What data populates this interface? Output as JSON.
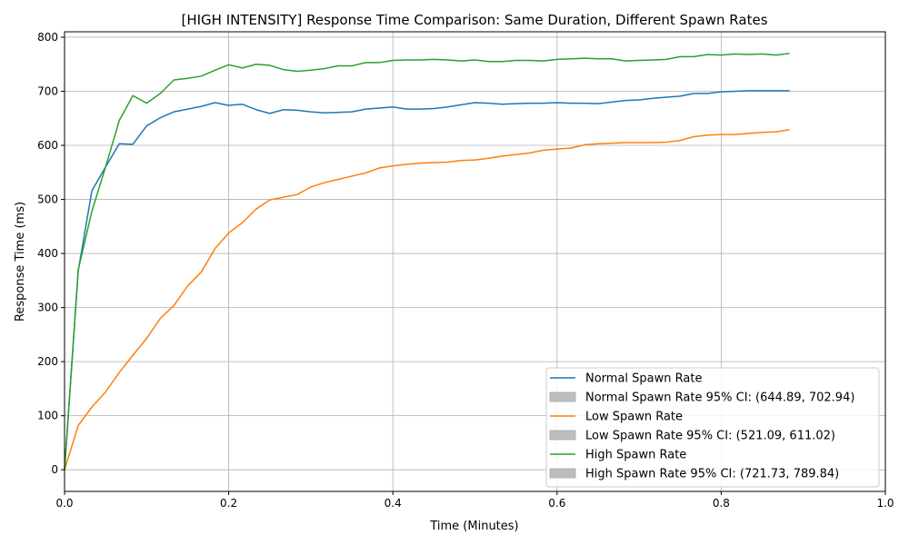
{
  "chart_data": {
    "type": "line",
    "title": "[HIGH INTENSITY] Response Time Comparison: Same Duration, Different Spawn Rates",
    "xlabel": "Time (Minutes)",
    "ylabel": "Response Time (ms)",
    "xlim": [
      0,
      1.0
    ],
    "ylim": [
      -40,
      810
    ],
    "xticks": [
      0.0,
      0.2,
      0.4,
      0.6,
      0.8,
      1.0
    ],
    "xtick_labels": [
      "0.0",
      "0.2",
      "0.4",
      "0.6",
      "0.8",
      "1.0"
    ],
    "yticks": [
      0,
      100,
      200,
      300,
      400,
      500,
      600,
      700,
      800
    ],
    "ytick_labels": [
      "0",
      "100",
      "200",
      "300",
      "400",
      "500",
      "600",
      "700",
      "800"
    ],
    "grid": true,
    "legend_position": "lower-right",
    "x": [
      0.0,
      0.0167,
      0.0333,
      0.05,
      0.0667,
      0.0833,
      0.1,
      0.1167,
      0.1333,
      0.15,
      0.1667,
      0.1833,
      0.2,
      0.2167,
      0.2333,
      0.25,
      0.2667,
      0.2833,
      0.3,
      0.3167,
      0.3333,
      0.35,
      0.3667,
      0.3833,
      0.4,
      0.4167,
      0.4333,
      0.45,
      0.4667,
      0.4833,
      0.5,
      0.5167,
      0.5333,
      0.55,
      0.5667,
      0.5833,
      0.6,
      0.6167,
      0.6333,
      0.65,
      0.6667,
      0.6833,
      0.7,
      0.7167,
      0.7333,
      0.75,
      0.7667,
      0.7833,
      0.8,
      0.8167,
      0.8333,
      0.85,
      0.8667,
      0.8833
    ],
    "series": [
      {
        "name": "Normal Spawn Rate",
        "color": "#1f77b4",
        "values": [
          0,
          368,
          516,
          560,
          603,
          602,
          636,
          651,
          662,
          667,
          672,
          679,
          674,
          676,
          666,
          659,
          666,
          665,
          662,
          660,
          661,
          662,
          667,
          669,
          671,
          667,
          667,
          668,
          671,
          675,
          679,
          678,
          676,
          677,
          678,
          678,
          679,
          678,
          678,
          677,
          680,
          683,
          684,
          687,
          689,
          691,
          696,
          696,
          699,
          700,
          701,
          701,
          701,
          701
        ]
      },
      {
        "name": "Low Spawn Rate",
        "color": "#ff7f0e",
        "values": [
          0,
          82,
          116,
          144,
          180,
          212,
          243,
          280,
          304,
          340,
          366,
          409,
          438,
          457,
          482,
          499,
          504,
          509,
          523,
          531,
          537,
          543,
          549,
          558,
          562,
          565,
          567,
          568,
          569,
          572,
          573,
          576,
          580,
          583,
          586,
          591,
          593,
          595,
          601,
          603,
          604,
          605,
          605,
          605,
          606,
          609,
          616,
          619,
          620,
          620,
          622,
          624,
          625,
          629
        ]
      },
      {
        "name": "High Spawn Rate",
        "color": "#2ca02c",
        "values": [
          0,
          370,
          478,
          560,
          646,
          692,
          678,
          696,
          721,
          724,
          728,
          739,
          749,
          743,
          750,
          748,
          740,
          737,
          739,
          742,
          747,
          747,
          753,
          753,
          757,
          758,
          758,
          759,
          758,
          756,
          758,
          755,
          755,
          757,
          757,
          756,
          759,
          760,
          761,
          760,
          760,
          756,
          757,
          758,
          759,
          764,
          764,
          768,
          767,
          769,
          768,
          769,
          767,
          770
        ]
      }
    ],
    "legend": [
      {
        "label": "Normal Spawn Rate",
        "kind": "line",
        "color": "#1f77b4"
      },
      {
        "label": "Normal Spawn Rate 95% CI: (644.89, 702.94)",
        "kind": "patch",
        "color": "#bdbdbd"
      },
      {
        "label": "Low Spawn Rate",
        "kind": "line",
        "color": "#ff7f0e"
      },
      {
        "label": "Low Spawn Rate 95% CI: (521.09, 611.02)",
        "kind": "patch",
        "color": "#bdbdbd"
      },
      {
        "label": "High Spawn Rate",
        "kind": "line",
        "color": "#2ca02c"
      },
      {
        "label": "High Spawn Rate 95% CI: (721.73, 789.84)",
        "kind": "patch",
        "color": "#bdbdbd"
      }
    ]
  }
}
